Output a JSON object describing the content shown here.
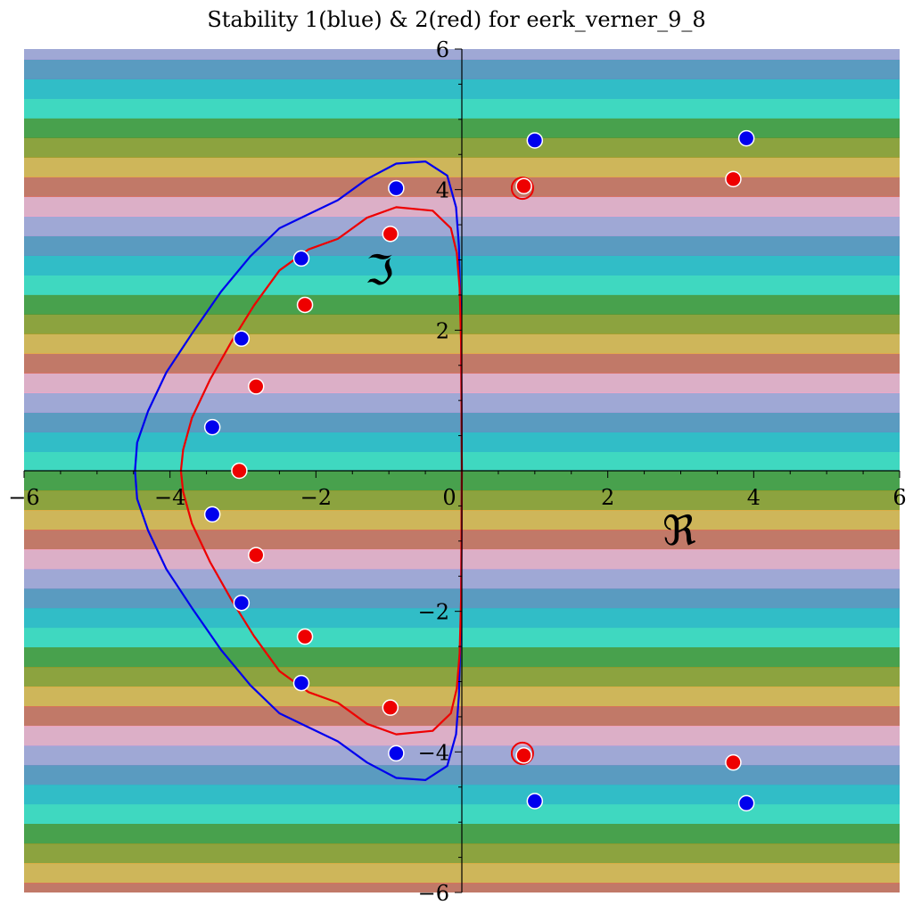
{
  "chart_data": {
    "type": "scatter",
    "title": "Stability 1(blue) & 2(red) for eerk_verner_9_8",
    "xlabel": "ℜ",
    "ylabel": "ℑ",
    "xlim": [
      -6,
      6
    ],
    "ylim": [
      -6,
      6
    ],
    "x_ticks": [
      -6,
      -4,
      -2,
      0,
      2,
      4,
      6
    ],
    "y_ticks": [
      -6,
      -4,
      -2,
      2,
      4,
      6
    ],
    "x_tick_labels": [
      "−6",
      "−4",
      "−2",
      "0",
      "2",
      "4",
      "6"
    ],
    "y_tick_labels": [
      "−6",
      "−4",
      "−2",
      "2",
      "4",
      "6"
    ],
    "grid": false,
    "colors": {
      "blue": "#0000ee",
      "red": "#ee0000",
      "background_palette": [
        "#40d8c0",
        "#2fb8c8",
        "#5f90c0",
        "#b0a0d8",
        "#f8a8c8",
        "#d86858",
        "#e8b048",
        "#9a9a28",
        "#4a9838"
      ]
    },
    "series": [
      {
        "color": "blue",
        "kind": "stability-boundary",
        "points": [
          [
            0,
            0
          ],
          [
            -0.01,
            2.0
          ],
          [
            -0.04,
            3.2
          ],
          [
            -0.08,
            3.75
          ],
          [
            -0.2,
            4.2
          ],
          [
            -0.5,
            4.4
          ],
          [
            -0.9,
            4.37
          ],
          [
            -1.3,
            4.15
          ],
          [
            -1.7,
            3.85
          ],
          [
            -2.1,
            3.65
          ],
          [
            -2.5,
            3.45
          ],
          [
            -2.9,
            3.05
          ],
          [
            -3.3,
            2.55
          ],
          [
            -3.7,
            1.95
          ],
          [
            -4.05,
            1.4
          ],
          [
            -4.3,
            0.85
          ],
          [
            -4.45,
            0.4
          ],
          [
            -4.48,
            0
          ]
        ]
      },
      {
        "color": "red",
        "kind": "stability-boundary",
        "points": [
          [
            0,
            0
          ],
          [
            -0.01,
            1.8
          ],
          [
            -0.03,
            2.6
          ],
          [
            -0.07,
            3.1
          ],
          [
            -0.15,
            3.45
          ],
          [
            -0.4,
            3.7
          ],
          [
            -0.9,
            3.75
          ],
          [
            -1.3,
            3.6
          ],
          [
            -1.7,
            3.3
          ],
          [
            -2.1,
            3.15
          ],
          [
            -2.5,
            2.85
          ],
          [
            -2.85,
            2.35
          ],
          [
            -3.15,
            1.85
          ],
          [
            -3.45,
            1.3
          ],
          [
            -3.7,
            0.75
          ],
          [
            -3.82,
            0.3
          ],
          [
            -3.85,
            0
          ]
        ]
      },
      {
        "color": "blue",
        "kind": "poles",
        "points": [
          [
            -0.9,
            4.02
          ],
          [
            -2.2,
            3.02
          ],
          [
            -3.02,
            1.88
          ],
          [
            -3.42,
            0.62
          ],
          [
            -3.42,
            -0.62
          ],
          [
            -3.02,
            -1.88
          ],
          [
            -2.2,
            -3.02
          ],
          [
            -0.9,
            -4.02
          ],
          [
            1.0,
            4.7
          ],
          [
            3.9,
            4.73
          ],
          [
            1.0,
            -4.7
          ],
          [
            3.9,
            -4.73
          ]
        ]
      },
      {
        "color": "red",
        "kind": "poles",
        "points": [
          [
            -0.98,
            3.37
          ],
          [
            -2.15,
            2.36
          ],
          [
            -2.82,
            1.2
          ],
          [
            -3.05,
            0
          ],
          [
            -2.82,
            -1.2
          ],
          [
            -2.15,
            -2.36
          ],
          [
            -0.98,
            -3.37
          ],
          [
            0.85,
            4.05
          ],
          [
            3.72,
            4.15
          ],
          [
            0.85,
            -4.05
          ],
          [
            3.72,
            -4.15
          ]
        ]
      },
      {
        "color": "red",
        "kind": "small-islands",
        "points": [
          [
            0.83,
            4.02
          ],
          [
            0.83,
            -4.02
          ]
        ]
      }
    ]
  }
}
